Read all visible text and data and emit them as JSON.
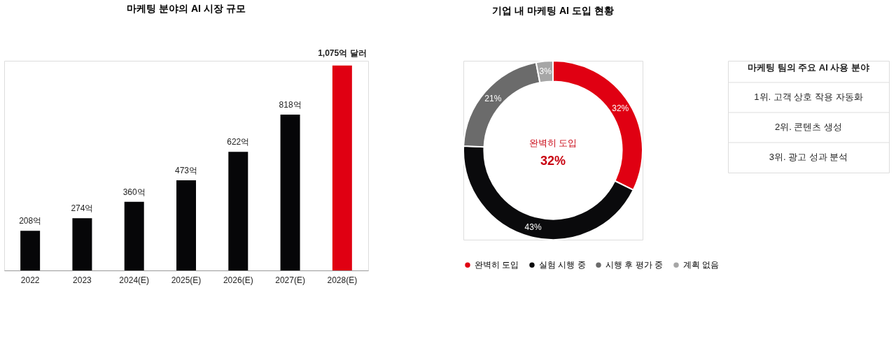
{
  "chart_data": [
    {
      "type": "bar",
      "title": "마케팅 분야의 AI 시장 규모",
      "categories": [
        "2022",
        "2023",
        "2024(E)",
        "2025(E)",
        "2026(E)",
        "2027(E)",
        "2028(E)"
      ],
      "values": [
        208,
        274,
        360,
        473,
        622,
        818,
        1075
      ],
      "colors": [
        "#060608",
        "#060608",
        "#060608",
        "#060608",
        "#060608",
        "#060608",
        "#e00012"
      ],
      "value_labels": [
        "208억",
        "274억",
        "360억",
        "473억",
        "622억",
        "818억",
        "1,075억 달러"
      ]
    },
    {
      "type": "donut",
      "title": "기업 내 마케팅 AI 도입 현황",
      "categories": [
        "완벽히 도입",
        "실험 시행 중",
        "시행 후 평가 중",
        "계획 없음"
      ],
      "values": [
        32,
        43,
        21,
        3
      ],
      "colors": [
        "#e00012",
        "#0a0a0c",
        "#6b6b6b",
        "#a6a6a6"
      ],
      "value_labels": [
        "32%",
        "43%",
        "21%",
        "3%"
      ],
      "annotations": [
        "완벽히 도입",
        "32%"
      ],
      "legend": "bottom"
    },
    {
      "type": "other",
      "title": "마케팅 팀의 주요 AI 사용 분야",
      "annotations": [
        "1위. 고객 상호 작용 자동화",
        "2위. 콘텐츠 생성",
        "3위. 광고 성과 분석"
      ]
    }
  ]
}
